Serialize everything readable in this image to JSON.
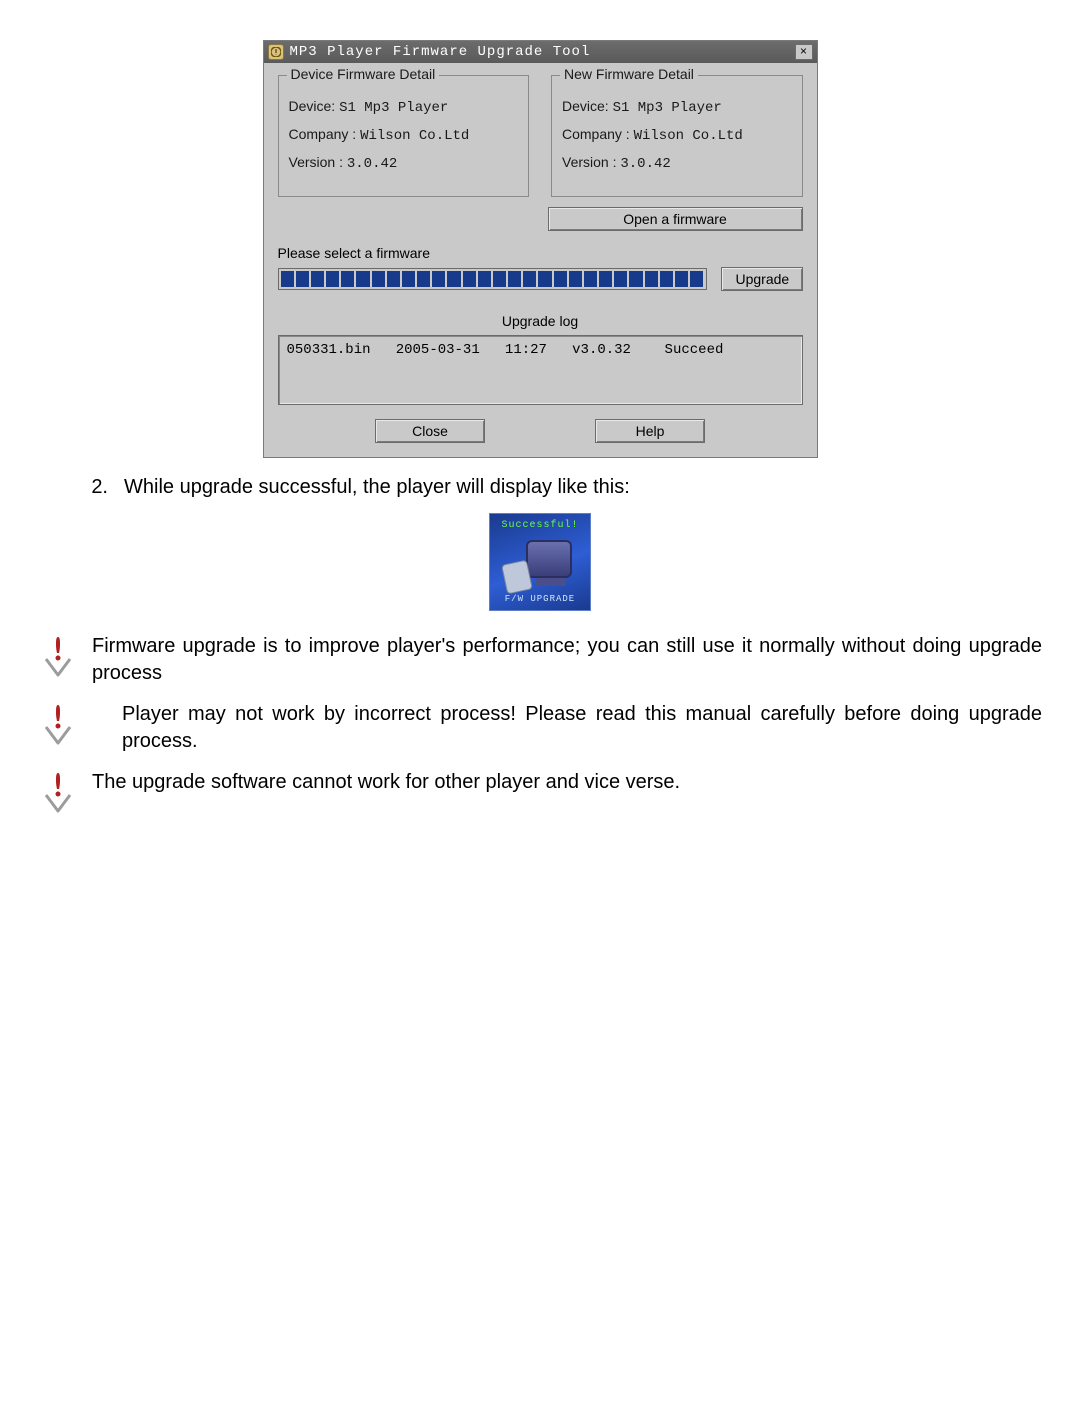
{
  "dialog": {
    "title": "MP3 Player Firmware Upgrade Tool",
    "close_glyph": "×",
    "device_box": {
      "legend": "Device Firmware Detail",
      "device_label": "Device:",
      "device_value": "S1 Mp3 Player",
      "company_label": "Company :",
      "company_value": "Wilson Co.Ltd",
      "version_label": "Version :",
      "version_value": "3.0.42"
    },
    "new_box": {
      "legend": "New Firmware Detail",
      "device_label": "Device:",
      "device_value": "S1 Mp3 Player",
      "company_label": "Company :",
      "company_value": "Wilson Co.Ltd",
      "version_label": "Version :",
      "version_value": "3.0.42"
    },
    "open_btn": "Open a firmware",
    "select_label": "Please select a firmware",
    "upgrade_btn": "Upgrade",
    "upgrade_log_label": "Upgrade log",
    "log_line": "050331.bin   2005-03-31   11:27   v3.0.32    Succeed",
    "close_btn": "Close",
    "help_btn": "Help",
    "progress_segments": 28,
    "colors": {
      "dialog_bg": "#c9c9c9",
      "titlebar_bg": "#5e5e5e",
      "progress_fill": "#173a8a"
    }
  },
  "list_item": {
    "num": "2.",
    "text": "While upgrade successful, the player will display like this:"
  },
  "player_shot": {
    "top_text": "Successful!",
    "bottom_text": "F/W UPGRADE"
  },
  "notes": [
    "Firmware upgrade is to improve player's performance; you can still use it normally without doing upgrade process",
    "Player may not work by incorrect process! Please read this manual carefully before doing upgrade process.",
    "The upgrade software cannot work for other player and vice verse."
  ]
}
